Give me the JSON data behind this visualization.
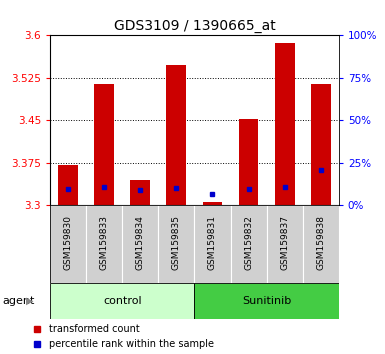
{
  "title": "GDS3109 / 1390665_at",
  "samples": [
    "GSM159830",
    "GSM159833",
    "GSM159834",
    "GSM159835",
    "GSM159831",
    "GSM159832",
    "GSM159837",
    "GSM159838"
  ],
  "groups": [
    "control",
    "control",
    "control",
    "control",
    "Sunitinib",
    "Sunitinib",
    "Sunitinib",
    "Sunitinib"
  ],
  "red_values": [
    3.371,
    3.515,
    3.345,
    3.548,
    3.305,
    3.453,
    3.587,
    3.515
  ],
  "blue_values": [
    3.328,
    3.332,
    3.327,
    3.33,
    3.32,
    3.329,
    3.332,
    3.363
  ],
  "ymin": 3.3,
  "ymax": 3.6,
  "yticks": [
    3.3,
    3.375,
    3.45,
    3.525,
    3.6
  ],
  "right_yticks": [
    0,
    25,
    50,
    75,
    100
  ],
  "bar_color": "#cc0000",
  "dot_color": "#0000cc",
  "bar_width": 0.55,
  "group_colors": {
    "control": "#ccffcc",
    "Sunitinib": "#44cc44"
  },
  "agent_label": "agent",
  "legend_items": [
    "transformed count",
    "percentile rank within the sample"
  ],
  "title_fontsize": 10,
  "tick_fontsize": 7.5,
  "sample_fontsize": 6.5,
  "group_fontsize": 8
}
